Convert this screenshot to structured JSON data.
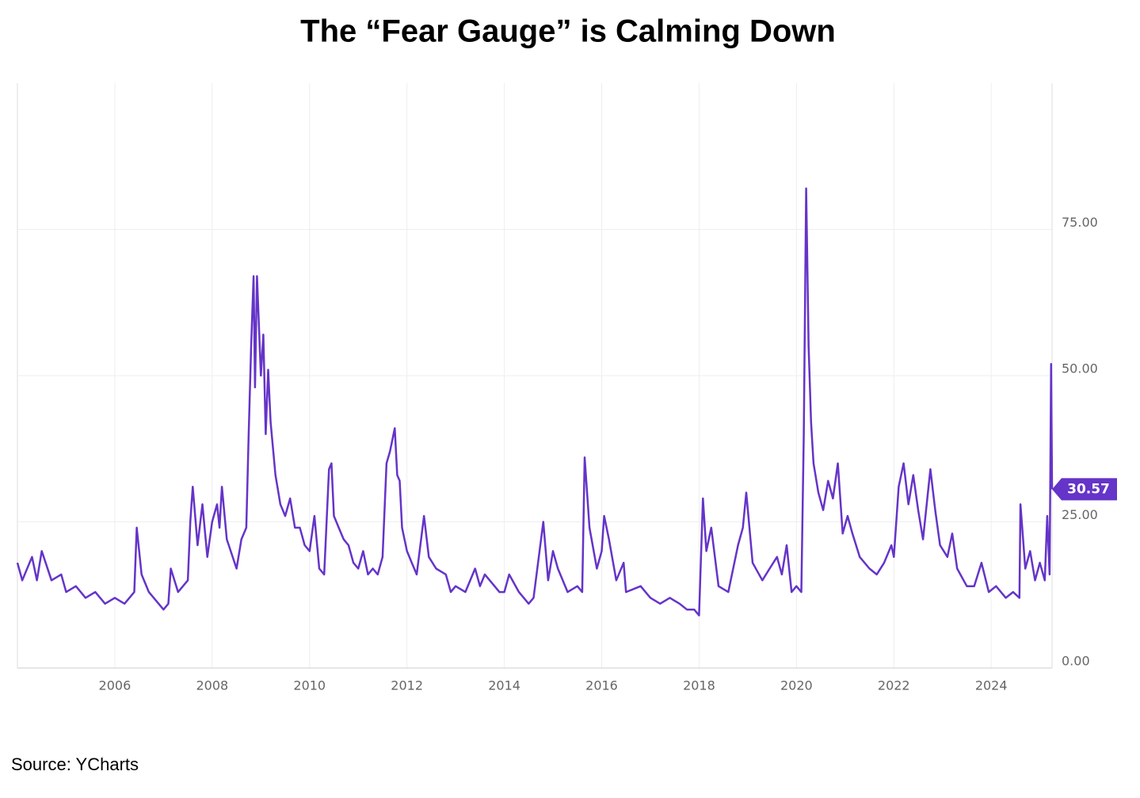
{
  "chart_data": {
    "type": "line",
    "title": "The “Fear Gauge” is Calming Down",
    "source": "Source: YCharts",
    "color": "#6534c8",
    "grid": true,
    "xlim": [
      2004,
      2025.25
    ],
    "xticks": [
      2006,
      2008,
      2010,
      2012,
      2014,
      2016,
      2018,
      2020,
      2022,
      2024
    ],
    "ylim": [
      0,
      100
    ],
    "yticks": [
      {
        "value": 0,
        "label": "0.00"
      },
      {
        "value": 25,
        "label": "25.00"
      },
      {
        "value": 50,
        "label": "50.00"
      },
      {
        "value": 75,
        "label": "75.00"
      }
    ],
    "x": [
      2004.0,
      2004.1,
      2004.3,
      2004.4,
      2004.5,
      2004.7,
      2004.9,
      2005.0,
      2005.2,
      2005.4,
      2005.6,
      2005.8,
      2006.0,
      2006.2,
      2006.4,
      2006.45,
      2006.55,
      2006.7,
      2006.9,
      2007.0,
      2007.1,
      2007.15,
      2007.3,
      2007.5,
      2007.55,
      2007.6,
      2007.7,
      2007.8,
      2007.9,
      2008.0,
      2008.1,
      2008.15,
      2008.2,
      2008.3,
      2008.5,
      2008.6,
      2008.7,
      2008.75,
      2008.8,
      2008.85,
      2008.88,
      2008.92,
      2009.0,
      2009.05,
      2009.1,
      2009.15,
      2009.2,
      2009.3,
      2009.4,
      2009.5,
      2009.6,
      2009.7,
      2009.8,
      2009.9,
      2010.0,
      2010.1,
      2010.2,
      2010.3,
      2010.4,
      2010.45,
      2010.5,
      2010.6,
      2010.7,
      2010.8,
      2010.9,
      2011.0,
      2011.1,
      2011.2,
      2011.3,
      2011.4,
      2011.5,
      2011.58,
      2011.65,
      2011.75,
      2011.8,
      2011.85,
      2011.9,
      2012.0,
      2012.1,
      2012.2,
      2012.35,
      2012.45,
      2012.6,
      2012.8,
      2012.9,
      2013.0,
      2013.2,
      2013.4,
      2013.5,
      2013.6,
      2013.8,
      2013.9,
      2014.0,
      2014.1,
      2014.3,
      2014.5,
      2014.6,
      2014.8,
      2014.9,
      2015.0,
      2015.1,
      2015.3,
      2015.5,
      2015.6,
      2015.65,
      2015.75,
      2015.9,
      2016.0,
      2016.05,
      2016.15,
      2016.3,
      2016.45,
      2016.5,
      2016.8,
      2016.9,
      2017.0,
      2017.2,
      2017.4,
      2017.6,
      2017.75,
      2017.9,
      2018.0,
      2018.08,
      2018.15,
      2018.25,
      2018.4,
      2018.6,
      2018.8,
      2018.9,
      2018.97,
      2019.1,
      2019.3,
      2019.45,
      2019.6,
      2019.7,
      2019.8,
      2019.9,
      2020.0,
      2020.1,
      2020.15,
      2020.2,
      2020.25,
      2020.3,
      2020.35,
      2020.45,
      2020.55,
      2020.65,
      2020.75,
      2020.85,
      2020.95,
      2021.05,
      2021.15,
      2021.3,
      2021.5,
      2021.65,
      2021.8,
      2021.95,
      2022.0,
      2022.1,
      2022.2,
      2022.3,
      2022.4,
      2022.5,
      2022.6,
      2022.75,
      2022.85,
      2022.95,
      2023.1,
      2023.2,
      2023.3,
      2023.5,
      2023.65,
      2023.8,
      2023.95,
      2024.1,
      2024.3,
      2024.45,
      2024.58,
      2024.6,
      2024.7,
      2024.8,
      2024.9,
      2025.0,
      2025.1,
      2025.15,
      2025.2,
      2025.23,
      2025.25
    ],
    "values": [
      18,
      15,
      19,
      15,
      20,
      15,
      16,
      13,
      14,
      12,
      13,
      11,
      12,
      11,
      13,
      24,
      16,
      13,
      11,
      10,
      11,
      17,
      13,
      15,
      25,
      31,
      21,
      28,
      19,
      25,
      28,
      24,
      31,
      22,
      17,
      22,
      24,
      40,
      55,
      67,
      48,
      67,
      50,
      57,
      40,
      51,
      42,
      33,
      28,
      26,
      29,
      24,
      24,
      21,
      20,
      26,
      17,
      16,
      34,
      35,
      26,
      24,
      22,
      21,
      18,
      17,
      20,
      16,
      17,
      16,
      19,
      35,
      37,
      41,
      33,
      32,
      24,
      20,
      18,
      16,
      26,
      19,
      17,
      16,
      13,
      14,
      13,
      17,
      14,
      16,
      14,
      13,
      13,
      16,
      13,
      11,
      12,
      25,
      15,
      20,
      17,
      13,
      14,
      13,
      36,
      24,
      17,
      20,
      26,
      22,
      15,
      18,
      13,
      14,
      13,
      12,
      11,
      12,
      11,
      10,
      10,
      9,
      29,
      20,
      24,
      14,
      13,
      21,
      24,
      30,
      18,
      15,
      17,
      19,
      16,
      21,
      13,
      14,
      13,
      40,
      82,
      55,
      42,
      35,
      30,
      27,
      32,
      29,
      35,
      23,
      26,
      23,
      19,
      17,
      16,
      18,
      21,
      19,
      31,
      35,
      28,
      33,
      27,
      22,
      34,
      27,
      21,
      19,
      23,
      17,
      14,
      14,
      18,
      13,
      14,
      12,
      13,
      12,
      28,
      17,
      20,
      15,
      18,
      15,
      26,
      16,
      52,
      30.57
    ]
  }
}
